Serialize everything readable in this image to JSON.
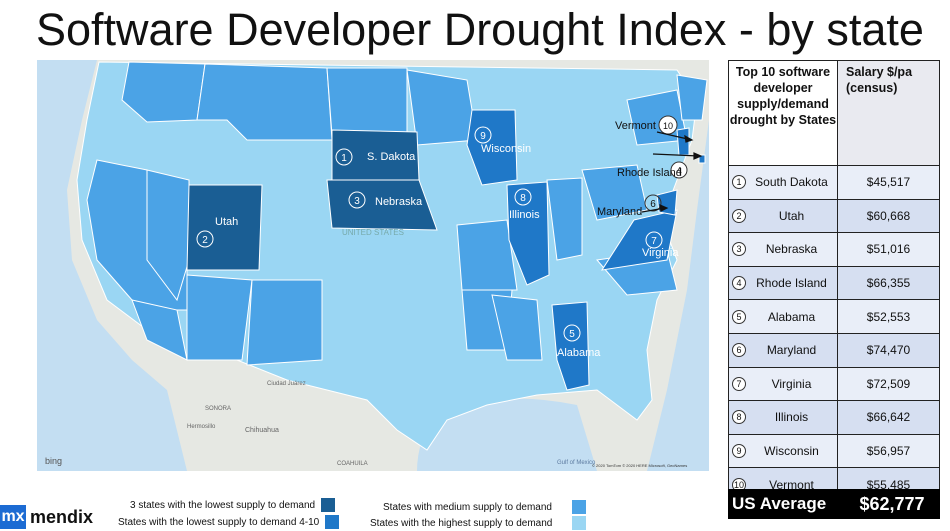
{
  "title": "Software Developer Drought Index - by state",
  "colors": {
    "lowest3": "#1a5e94",
    "lowest4_10": "#1f78c8",
    "medium": "#4ba3e6",
    "highest": "#9ad6f3",
    "map_bg": "#e3e6e2",
    "water": "#c3def2"
  },
  "map": {
    "labels": {
      "s_dakota": "S. Dakota",
      "nebraska": "Nebraska",
      "utah": "Utah",
      "wisconsin": "Wisconsin",
      "illinois": "Illinois",
      "maryland": "Maryland",
      "virginia": "Virginia",
      "alabama": "Alabama",
      "vermont": "Vermont",
      "rhode_island": "Rhode Island",
      "united_states": "UNITED STATES",
      "sonora": "SONORA",
      "chihuahua": "Chihuahua",
      "coahuila": "COAHUILA",
      "ciudad_juarez": "Ciudad Juárez",
      "hermosillo": "Hermosillo",
      "gulf": "Gulf of Mexico",
      "bing": "bing",
      "copyright": "© 2020 TomTom © 2020 HERE Microsoft, GeoNames"
    },
    "markers": {
      "s_dakota": "1",
      "utah": "2",
      "nebraska": "3",
      "rhode_island": "4",
      "alabama": "5",
      "maryland": "6",
      "virginia": "7",
      "illinois": "8",
      "wisconsin": "9",
      "vermont": "10"
    }
  },
  "table": {
    "header_state": "Top 10 software developer supply/demand drought by States",
    "header_salary": "Salary $/pa (census)",
    "rows": [
      {
        "rank": "1",
        "state": "South Dakota",
        "salary": "$45,517"
      },
      {
        "rank": "2",
        "state": "Utah",
        "salary": "$60,668"
      },
      {
        "rank": "3",
        "state": "Nebraska",
        "salary": "$51,016"
      },
      {
        "rank": "4",
        "state": "Rhode Island",
        "salary": "$66,355"
      },
      {
        "rank": "5",
        "state": "Alabama",
        "salary": "$52,553"
      },
      {
        "rank": "6",
        "state": "Maryland",
        "salary": "$74,470"
      },
      {
        "rank": "7",
        "state": "Virginia",
        "salary": "$72,509"
      },
      {
        "rank": "8",
        "state": "Illinois",
        "salary": "$66,642"
      },
      {
        "rank": "9",
        "state": "Wisconsin",
        "salary": "$56,957"
      },
      {
        "rank": "10",
        "state": "Vermont",
        "salary": "$55,485"
      }
    ],
    "avg_label": "US Average",
    "avg_value": "$62,777"
  },
  "legend": {
    "lowest3": "3 states with the lowest supply to demand",
    "lowest4_10": "States with the lowest supply to demand 4-10",
    "medium": "States with medium supply to demand",
    "highest": "States with the highest supply to demand"
  },
  "logo": {
    "mark": "mx",
    "name": "mendix"
  }
}
